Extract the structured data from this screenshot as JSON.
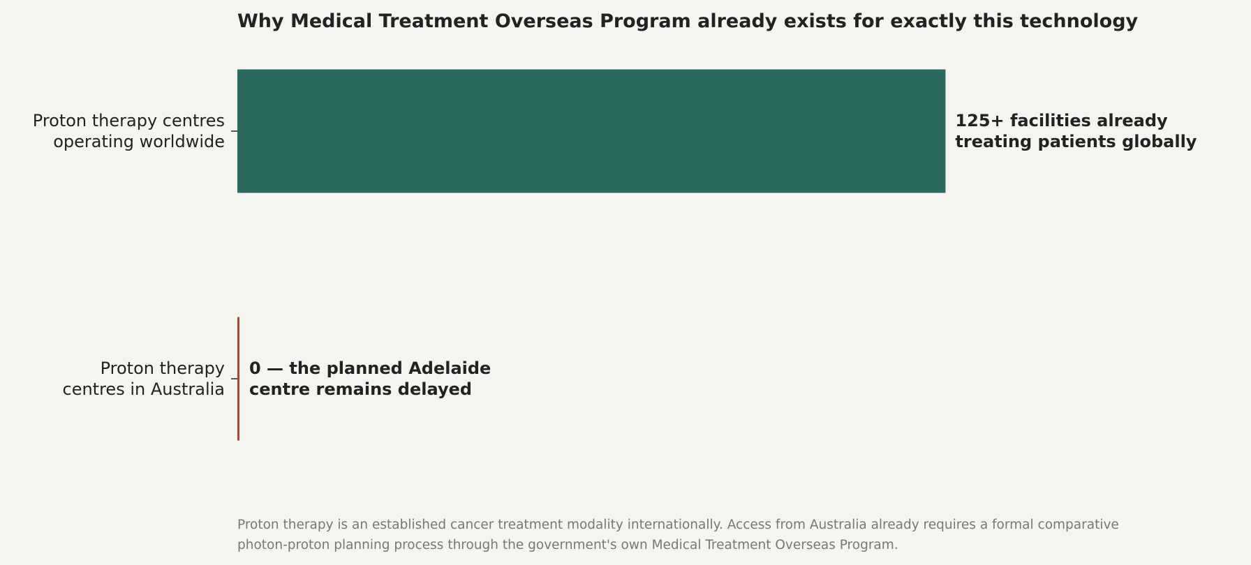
{
  "chart_data": {
    "type": "bar",
    "orientation": "horizontal",
    "title": "Why Medical Treatment Overseas Program already exists for exactly this technology",
    "categories": [
      [
        "Proton therapy centres",
        "operating worldwide"
      ],
      [
        "Proton therapy",
        "centres in Australia"
      ]
    ],
    "values": [
      125,
      0
    ],
    "data_labels": [
      [
        "125+ facilities already",
        "treating patients globally"
      ],
      [
        "0 — the planned Adelaide",
        "centre remains delayed"
      ]
    ],
    "colors": [
      "#2b685e",
      "#a9472a"
    ],
    "xlim": [
      0,
      156
    ],
    "grid": false,
    "axis_visible": false
  },
  "footnote": {
    "line1": "Proton therapy is an established cancer treatment modality internationally. Access from Australia already requires a formal comparative",
    "line2": "photon-proton planning process through the government's own Medical Treatment Overseas Program."
  }
}
